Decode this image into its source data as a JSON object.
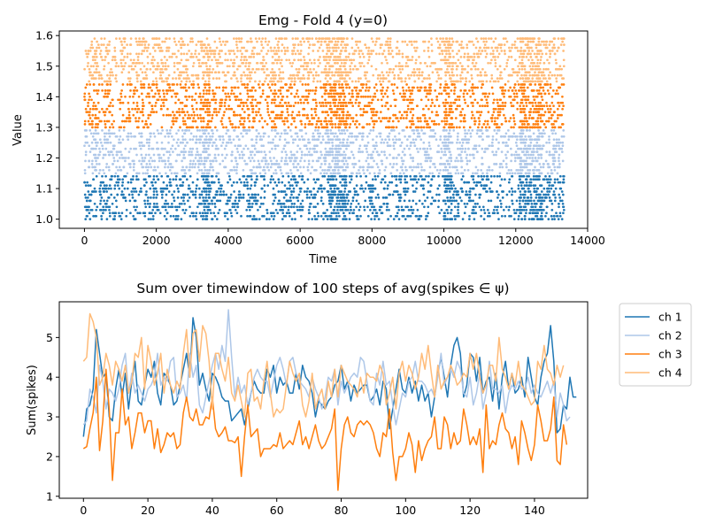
{
  "chart_data": [
    {
      "type": "scatter",
      "title": "Emg - Fold 4 (y=0)",
      "xlabel": "Time",
      "ylabel": "Value",
      "xlim": [
        -700,
        14000
      ],
      "ylim": [
        0.97,
        1.615
      ],
      "xticks": [
        0,
        2000,
        4000,
        6000,
        8000,
        10000,
        12000,
        14000
      ],
      "yticks": [
        1.0,
        1.1,
        1.2,
        1.3,
        1.4,
        1.5,
        1.6
      ],
      "ytick_labels": [
        "1.0",
        "1.1",
        "1.2",
        "1.3",
        "1.4",
        "1.5",
        "1.6"
      ],
      "x_range": [
        0,
        13350
      ],
      "dense_regions": [
        [
          6700,
          7300
        ],
        [
          12100,
          12750
        ],
        [
          10000,
          10250
        ],
        [
          3300,
          3500
        ]
      ],
      "series": [
        {
          "color": "#1f77b4",
          "band": [
            1.0,
            1.14
          ]
        },
        {
          "color": "#aec7e8",
          "band": [
            1.15,
            1.29
          ]
        },
        {
          "color": "#ff7f0e",
          "band": [
            1.3,
            1.44
          ]
        },
        {
          "color": "#ffbb78",
          "band": [
            1.45,
            1.59
          ]
        }
      ]
    },
    {
      "type": "line",
      "title": "Sum over timewindow of 100 steps of avg(spikes ∈ ψ)",
      "xlabel": "",
      "ylabel": "Sum(spikes)",
      "xlim": [
        -7.5,
        156.5
      ],
      "ylim": [
        0.95,
        5.9
      ],
      "xticks": [
        0,
        20,
        40,
        60,
        80,
        100,
        120,
        140
      ],
      "yticks": [
        1,
        2,
        3,
        4,
        5
      ],
      "legend_position": "outside-right",
      "series": [
        {
          "name": "ch 1",
          "color": "#1f77b4",
          "values": [
            2.5,
            3.2,
            3.3,
            3.7,
            5.2,
            4.6,
            4.0,
            4.1,
            3.0,
            2.9,
            3.7,
            4.2,
            3.5,
            4.1,
            3.2,
            3.9,
            4.4,
            3.4,
            3.3,
            3.8,
            4.2,
            4.0,
            4.4,
            3.6,
            3.3,
            4.1,
            4.0,
            3.8,
            3.3,
            3.4,
            3.8,
            4.2,
            4.6,
            4.0,
            5.5,
            5.0,
            3.8,
            4.1,
            3.7,
            3.4,
            4.1,
            4.0,
            3.8,
            3.5,
            3.4,
            3.4,
            2.9,
            3.0,
            3.1,
            3.2,
            2.8,
            3.2,
            3.6,
            3.9,
            3.7,
            3.6,
            3.6,
            4.2,
            4.0,
            4.3,
            3.6,
            4.0,
            3.8,
            3.9,
            3.6,
            3.6,
            4.1,
            3.7,
            4.3,
            4.0,
            3.9,
            3.6,
            3.0,
            3.4,
            3.3,
            3.2,
            3.4,
            3.5,
            3.8,
            3.9,
            4.3,
            3.7,
            3.9,
            3.4,
            3.8,
            3.6,
            3.7,
            3.8,
            3.8,
            3.4,
            3.5,
            3.7,
            3.3,
            3.9,
            3.7,
            2.7,
            3.2,
            3.7,
            4.2,
            3.7,
            3.6,
            4.0,
            3.6,
            3.9,
            3.4,
            3.8,
            3.4,
            3.6,
            3.0,
            3.5,
            4.1,
            4.5,
            4.0,
            3.5,
            4.3,
            4.8,
            5.0,
            4.6,
            3.5,
            3.8,
            4.6,
            4.5,
            3.9,
            4.5,
            3.6,
            3.9,
            4.0,
            3.4,
            4.1,
            3.2,
            4.0,
            4.4,
            3.7,
            4.1,
            3.6,
            3.7,
            4.0,
            3.5,
            4.5,
            4.0,
            3.5,
            3.3,
            4.0,
            4.4,
            4.6,
            5.3,
            4.4,
            2.6,
            2.7,
            3.3,
            3.2,
            4.0,
            3.5,
            3.5
          ]
        },
        {
          "name": "ch 2",
          "color": "#aec7e8",
          "values": [
            2.8,
            2.9,
            3.7,
            3.5,
            3.1,
            4.3,
            3.9,
            3.2,
            3.7,
            3.6,
            3.4,
            3.7,
            4.3,
            4.6,
            3.6,
            4.1,
            3.6,
            3.8,
            3.6,
            3.4,
            3.7,
            3.8,
            4.0,
            4.6,
            3.8,
            4.0,
            3.9,
            4.4,
            4.5,
            3.5,
            3.6,
            3.8,
            3.4,
            4.6,
            4.0,
            4.3,
            3.3,
            3.1,
            3.5,
            3.9,
            4.3,
            4.6,
            4.2,
            4.8,
            4.4,
            5.7,
            4.5,
            3.5,
            4.0,
            3.6,
            3.8,
            3.3,
            3.6,
            4.0,
            4.2,
            4.0,
            3.9,
            3.9,
            3.5,
            3.9,
            4.3,
            4.5,
            4.2,
            3.8,
            4.4,
            4.5,
            4.1,
            3.9,
            3.8,
            3.7,
            3.5,
            4.0,
            3.7,
            3.5,
            3.2,
            3.5,
            4.0,
            3.9,
            4.2,
            3.3,
            3.9,
            3.6,
            3.8,
            4.0,
            4.1,
            4.0,
            4.5,
            4.4,
            3.9,
            3.4,
            3.3,
            4.1,
            3.8,
            4.4,
            3.8,
            3.9,
            3.3,
            2.8,
            3.2,
            3.6,
            3.5,
            3.9,
            4.0,
            4.4,
            3.9,
            3.9,
            3.8,
            3.6,
            3.7,
            3.5,
            4.0,
            4.6,
            3.8,
            4.0,
            4.2,
            4.0,
            4.4,
            4.2,
            3.6,
            3.5,
            4.0,
            3.3,
            3.6,
            4.1,
            3.2,
            3.6,
            4.4,
            3.7,
            3.7,
            3.6,
            3.8,
            3.1,
            3.6,
            3.8,
            3.7,
            3.9,
            3.7,
            3.7,
            4.0,
            3.6,
            3.8,
            3.6,
            3.5,
            3.7,
            3.9,
            3.6,
            3.9,
            3.0,
            3.6,
            3.3,
            2.9,
            3.0
          ]
        },
        {
          "name": "ch 3",
          "color": "#ff7f0e",
          "values": [
            2.2,
            2.25,
            2.7,
            3.1,
            4.0,
            2.15,
            2.9,
            4.2,
            3.2,
            1.4,
            2.6,
            2.6,
            3.7,
            2.8,
            3.0,
            2.2,
            2.6,
            3.1,
            3.1,
            2.6,
            2.9,
            2.9,
            2.2,
            2.7,
            2.1,
            2.3,
            2.6,
            2.5,
            2.6,
            2.2,
            2.3,
            3.1,
            3.5,
            3.0,
            2.9,
            3.2,
            2.8,
            2.8,
            3.0,
            2.95,
            3.5,
            2.7,
            2.5,
            2.6,
            2.75,
            2.4,
            2.4,
            2.35,
            2.5,
            1.5,
            2.5,
            3.3,
            2.5,
            2.6,
            2.7,
            2.0,
            2.2,
            2.2,
            2.2,
            2.3,
            2.25,
            2.6,
            2.2,
            2.3,
            2.4,
            2.3,
            2.6,
            2.9,
            2.3,
            2.5,
            2.2,
            2.5,
            2.8,
            2.4,
            2.2,
            2.3,
            2.5,
            2.7,
            3.2,
            1.15,
            2.2,
            2.8,
            3.0,
            2.6,
            2.5,
            2.8,
            2.9,
            2.8,
            2.9,
            2.8,
            2.6,
            2.2,
            2.0,
            2.6,
            2.5,
            3.2,
            2.1,
            1.4,
            2.0,
            2.0,
            2.2,
            2.6,
            2.3,
            1.6,
            2.4,
            1.9,
            2.2,
            2.4,
            2.5,
            3.0,
            2.2,
            2.2,
            3.0,
            2.8,
            2.2,
            2.6,
            2.3,
            2.4,
            3.2,
            2.8,
            2.3,
            2.5,
            2.3,
            2.7,
            1.6,
            3.3,
            2.2,
            2.4,
            2.3,
            2.8,
            3.1,
            2.7,
            2.6,
            2.2,
            2.5,
            1.8,
            2.9,
            2.6,
            2.2,
            1.9,
            2.3,
            3.3,
            2.9,
            2.4,
            2.4,
            2.7,
            3.5,
            1.9,
            1.8,
            2.8,
            2.3
          ]
        },
        {
          "name": "ch 4",
          "color": "#ffbb78",
          "values": [
            4.4,
            4.5,
            5.6,
            5.4,
            5.0,
            3.8,
            4.0,
            4.6,
            4.3,
            3.8,
            4.4,
            4.2,
            3.9,
            4.3,
            3.6,
            3.9,
            4.6,
            4.5,
            5.0,
            3.7,
            4.8,
            4.4,
            3.8,
            4.1,
            4.6,
            3.6,
            4.2,
            3.8,
            3.6,
            3.9,
            3.7,
            4.6,
            5.2,
            4.0,
            5.1,
            5.2,
            4.4,
            5.3,
            5.1,
            4.4,
            3.2,
            4.6,
            4.6,
            4.2,
            3.9,
            4.5,
            3.6,
            3.4,
            3.8,
            3.4,
            3.0,
            4.1,
            4.2,
            3.4,
            3.5,
            3.2,
            3.9,
            4.4,
            3.6,
            3.0,
            3.2,
            3.1,
            3.2,
            3.8,
            4.4,
            4.1,
            3.9,
            4.1,
            3.3,
            3.0,
            3.4,
            4.1,
            3.2,
            3.5,
            3.7,
            3.2,
            3.9,
            3.5,
            4.2,
            3.5,
            4.3,
            4.1,
            3.9,
            3.8,
            3.7,
            3.5,
            4.0,
            3.6,
            4.1,
            4.0,
            4.0,
            3.9,
            4.3,
            4.1,
            3.3,
            3.6,
            4.0,
            3.2,
            4.1,
            4.4,
            3.9,
            4.3,
            4.1,
            3.7,
            4.0,
            4.6,
            4.2,
            4.8,
            4.1,
            3.5,
            4.3,
            3.7,
            3.9,
            4.0,
            4.3,
            4.1,
            3.8,
            3.9,
            4.1,
            4.0,
            4.6,
            4.2,
            4.6,
            4.0,
            3.6,
            3.8,
            4.3,
            4.3,
            3.9,
            5.0,
            4.2,
            4.0,
            3.7,
            4.1,
            3.8,
            4.4,
            3.8,
            3.7,
            3.5,
            3.3,
            3.4,
            4.4,
            4.2,
            4.8,
            4.2,
            4.1,
            3.8,
            4.3,
            4.0,
            4.3
          ]
        }
      ]
    }
  ]
}
